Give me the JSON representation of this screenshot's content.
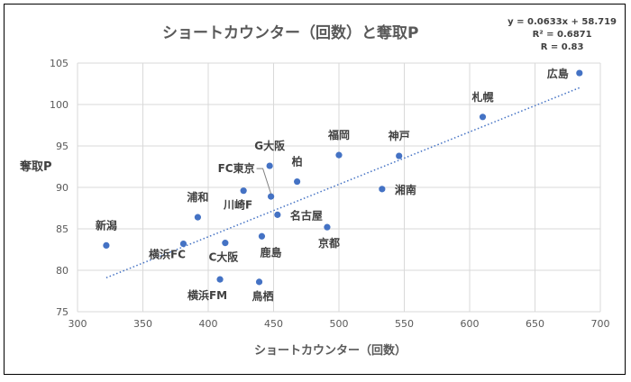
{
  "chart_data": {
    "type": "scatter",
    "title": "ショートカウンター（回数）と奪取P",
    "xlabel": "ショートカウンター（回数）",
    "ylabel": "奪取P",
    "xlim": [
      300,
      700
    ],
    "ylim": [
      75,
      105
    ],
    "xticks": [
      300,
      350,
      400,
      450,
      500,
      550,
      600,
      650,
      700
    ],
    "yticks": [
      75,
      80,
      85,
      90,
      95,
      100,
      105
    ],
    "grid": true,
    "color": "#4472c4",
    "trendline": {
      "slope": 0.0633,
      "intercept": 58.719,
      "style": "dotted",
      "x_range": [
        322,
        684
      ],
      "equation": "y = 0.0633x + 58.719",
      "r2": "R² = 0.6871",
      "r": "R = 0.83"
    },
    "points": [
      {
        "label": "新潟",
        "x": 322,
        "y": 83.0
      },
      {
        "label": "横浜FC",
        "x": 381,
        "y": 83.2
      },
      {
        "label": "浦和",
        "x": 392,
        "y": 86.4
      },
      {
        "label": "C大阪",
        "x": 413,
        "y": 83.3
      },
      {
        "label": "横浜FM",
        "x": 409,
        "y": 78.9
      },
      {
        "label": "鹿島",
        "x": 441,
        "y": 84.1
      },
      {
        "label": "鳥栖",
        "x": 439,
        "y": 78.6
      },
      {
        "label": "川崎F",
        "x": 427,
        "y": 89.6
      },
      {
        "label": "G大阪",
        "x": 447,
        "y": 92.6
      },
      {
        "label": "FC東京",
        "x": 448,
        "y": 88.9
      },
      {
        "label": "柏",
        "x": 468,
        "y": 90.7
      },
      {
        "label": "名古屋",
        "x": 453,
        "y": 86.7
      },
      {
        "label": "福岡",
        "x": 500,
        "y": 93.9
      },
      {
        "label": "京都",
        "x": 491,
        "y": 85.2
      },
      {
        "label": "神戸",
        "x": 546,
        "y": 93.8
      },
      {
        "label": "湘南",
        "x": 533,
        "y": 89.8
      },
      {
        "label": "札幌",
        "x": 610,
        "y": 98.5
      },
      {
        "label": "広島",
        "x": 684,
        "y": 103.8
      }
    ]
  }
}
